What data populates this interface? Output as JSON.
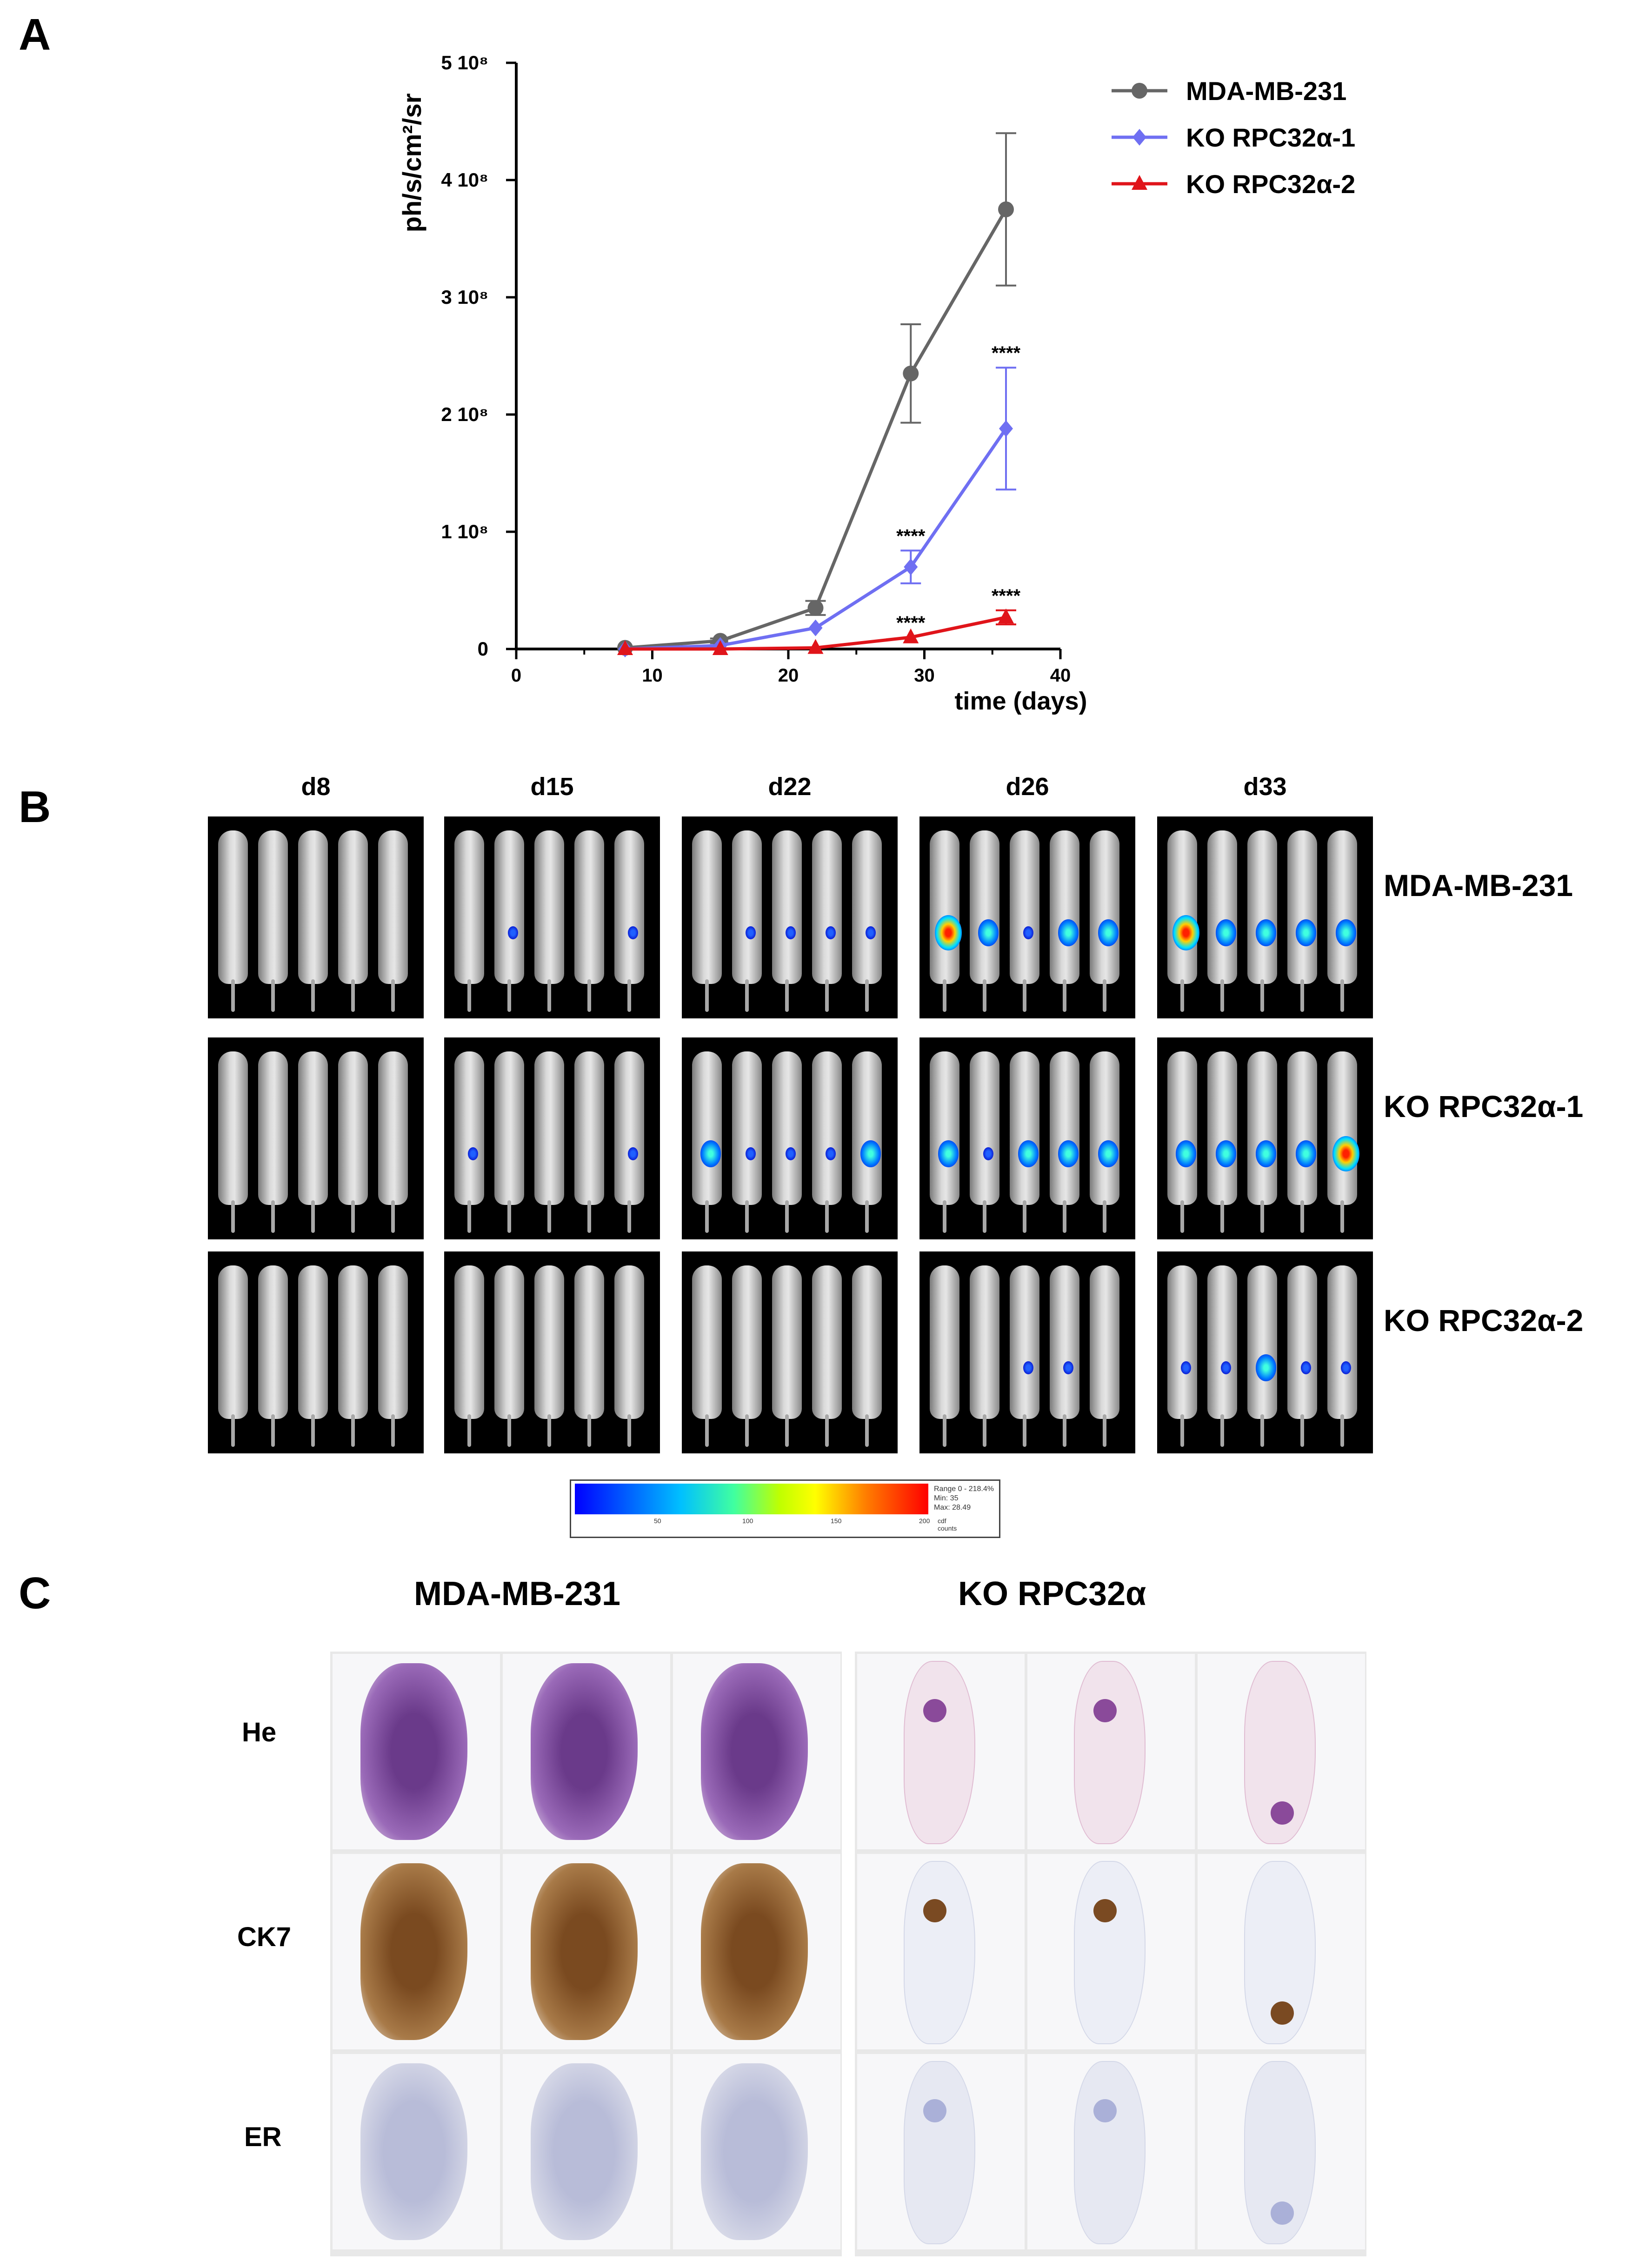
{
  "panels": {
    "a": "A",
    "b": "B",
    "c": "C"
  },
  "chart_data": {
    "type": "line",
    "ylabel": "ph/s/cm²/sr",
    "xlabel": "time (days)",
    "xlim": [
      0,
      40
    ],
    "ylim": [
      0,
      500000000
    ],
    "xticks": [
      0,
      10,
      20,
      30,
      40
    ],
    "xtick_labels": [
      "0",
      "10",
      "20",
      "30",
      "40"
    ],
    "yticks": [
      0,
      100000000,
      200000000,
      300000000,
      400000000,
      500000000
    ],
    "ytick_labels": [
      "0",
      "1 10⁸",
      "2 10⁸",
      "3 10⁸",
      "4 10⁸",
      "5 10⁸"
    ],
    "legend_position": "top-right",
    "series": [
      {
        "name": "MDA-MB-231",
        "color": "#666666",
        "marker": "circle",
        "x": [
          8,
          15,
          22,
          29,
          36
        ],
        "y": [
          1000000,
          7000000,
          35000000,
          235000000,
          375000000
        ],
        "err": [
          0,
          2000000,
          6000000,
          42000000,
          65000000
        ],
        "sig": [
          "",
          "",
          "",
          "",
          ""
        ]
      },
      {
        "name": "KO RPC32α-1",
        "color": "#6f6ff2",
        "marker": "diamond",
        "x": [
          8,
          15,
          22,
          29,
          36
        ],
        "y": [
          0,
          3000000,
          18000000,
          70000000,
          188000000
        ],
        "err": [
          0,
          0,
          0,
          14000000,
          52000000
        ],
        "sig": [
          "",
          "",
          "",
          "****",
          "****"
        ]
      },
      {
        "name": "KO RPC32α-2",
        "color": "#e0141a",
        "marker": "triangle",
        "x": [
          8,
          15,
          22,
          29,
          36
        ],
        "y": [
          0,
          0,
          1000000,
          10000000,
          27000000
        ],
        "err": [
          0,
          0,
          0,
          0,
          6000000
        ],
        "sig": [
          "",
          "",
          "",
          "****",
          "****"
        ]
      }
    ]
  },
  "imaging": {
    "days": [
      "d8",
      "d15",
      "d22",
      "d26",
      "d33"
    ],
    "rows": [
      "MDA-MB-231",
      "KO RPC32α-1",
      "KO RPC32α-2"
    ],
    "colorbar_note": [
      "Range 0 - 218.4%",
      "Min: 35",
      "Max: 28.49"
    ],
    "colorbar_ticks": [
      "50",
      "100",
      "150",
      "200",
      "cdf counts"
    ]
  },
  "histology": {
    "columns": [
      "MDA-MB-231",
      "KO RPC32α"
    ],
    "stains": [
      "He",
      "CK7",
      "ER"
    ]
  }
}
